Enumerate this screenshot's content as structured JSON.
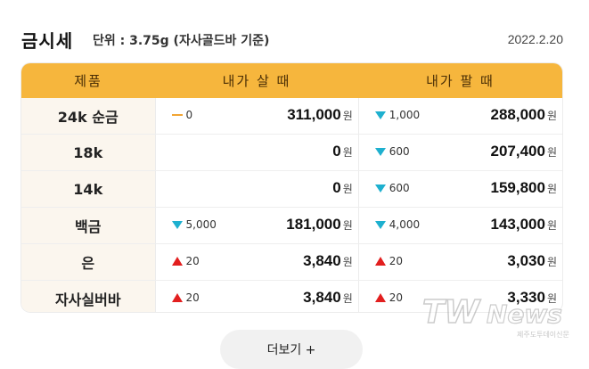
{
  "header": {
    "title": "금시세",
    "unit": "단위 : 3.75g (자사골드바 기준)",
    "date": "2022.2.20"
  },
  "table": {
    "columns": [
      "제품",
      "내가 살 때",
      "내가 팔 때"
    ],
    "currency": "원",
    "rows": [
      {
        "product": "24k 순금",
        "buy_change_dir": "flat",
        "buy_change": "0",
        "buy_price": "311,000",
        "sell_change_dir": "down",
        "sell_change": "1,000",
        "sell_price": "288,000"
      },
      {
        "product": "18k",
        "buy_change_dir": "none",
        "buy_change": "",
        "buy_price": "0",
        "sell_change_dir": "down",
        "sell_change": "600",
        "sell_price": "207,400"
      },
      {
        "product": "14k",
        "buy_change_dir": "none",
        "buy_change": "",
        "buy_price": "0",
        "sell_change_dir": "down",
        "sell_change": "600",
        "sell_price": "159,800"
      },
      {
        "product": "백금",
        "buy_change_dir": "down",
        "buy_change": "5,000",
        "buy_price": "181,000",
        "sell_change_dir": "down",
        "sell_change": "4,000",
        "sell_price": "143,000"
      },
      {
        "product": "은",
        "buy_change_dir": "up",
        "buy_change": "20",
        "buy_price": "3,840",
        "sell_change_dir": "up",
        "sell_change": "20",
        "sell_price": "3,030"
      },
      {
        "product": "자사실버바",
        "buy_change_dir": "up",
        "buy_change": "20",
        "buy_price": "3,840",
        "sell_change_dir": "up",
        "sell_change": "20",
        "sell_price": "3,330"
      }
    ]
  },
  "more_button": {
    "label": "더보기 +"
  },
  "watermark": {
    "brand": "TWNews",
    "tagline": "제주도투데이신문"
  },
  "colors": {
    "header_bg": "#f6b63d",
    "down": "#1eb0cf",
    "up": "#e21f1f",
    "flat": "#f2a534"
  }
}
